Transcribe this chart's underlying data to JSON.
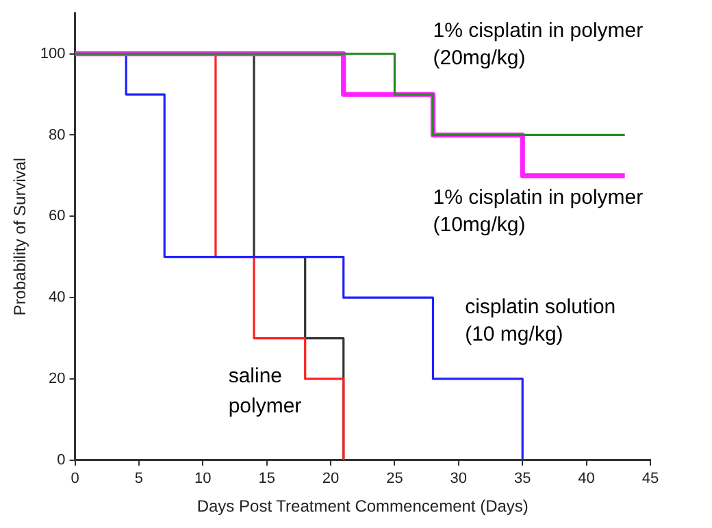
{
  "chart_data": {
    "type": "step",
    "xlabel": "Days Post Treatment Commencement (Days)",
    "ylabel": "Probability of Survival",
    "xlim": [
      0,
      45
    ],
    "xticks": [
      0,
      5,
      10,
      15,
      20,
      25,
      30,
      35,
      40,
      45
    ],
    "ylim": [
      0,
      110
    ],
    "yticks": [
      0,
      20,
      40,
      60,
      80,
      100
    ],
    "grid": false,
    "legend": false,
    "marker": "none",
    "line_style": "solid",
    "series": [
      {
        "name": "1% cisplatin in polymer (20mg/kg)",
        "color": "#2a8a2a",
        "x": [
          0,
          25,
          28,
          43
        ],
        "values": [
          100,
          90,
          80,
          80
        ]
      },
      {
        "name": "1% cisplatin in polymer (10mg/kg)",
        "color": "#ff22ff",
        "x": [
          0,
          21,
          28,
          35,
          43
        ],
        "values": [
          100,
          90,
          80,
          70,
          70
        ]
      },
      {
        "name": "cisplatin solution (10 mg/kg)",
        "color": "#2020ff",
        "x": [
          0,
          4,
          7,
          21,
          28,
          35
        ],
        "values": [
          100,
          90,
          50,
          40,
          20,
          0
        ]
      },
      {
        "color": "#ff2020",
        "x": [
          0,
          11,
          14,
          18,
          21
        ],
        "values": [
          100,
          50,
          30,
          20,
          0
        ]
      },
      {
        "color": "#333333",
        "x": [
          0,
          14,
          18,
          21
        ],
        "values": [
          100,
          50,
          30,
          0
        ]
      }
    ],
    "annotations": [
      "saline",
      "polymer"
    ]
  }
}
